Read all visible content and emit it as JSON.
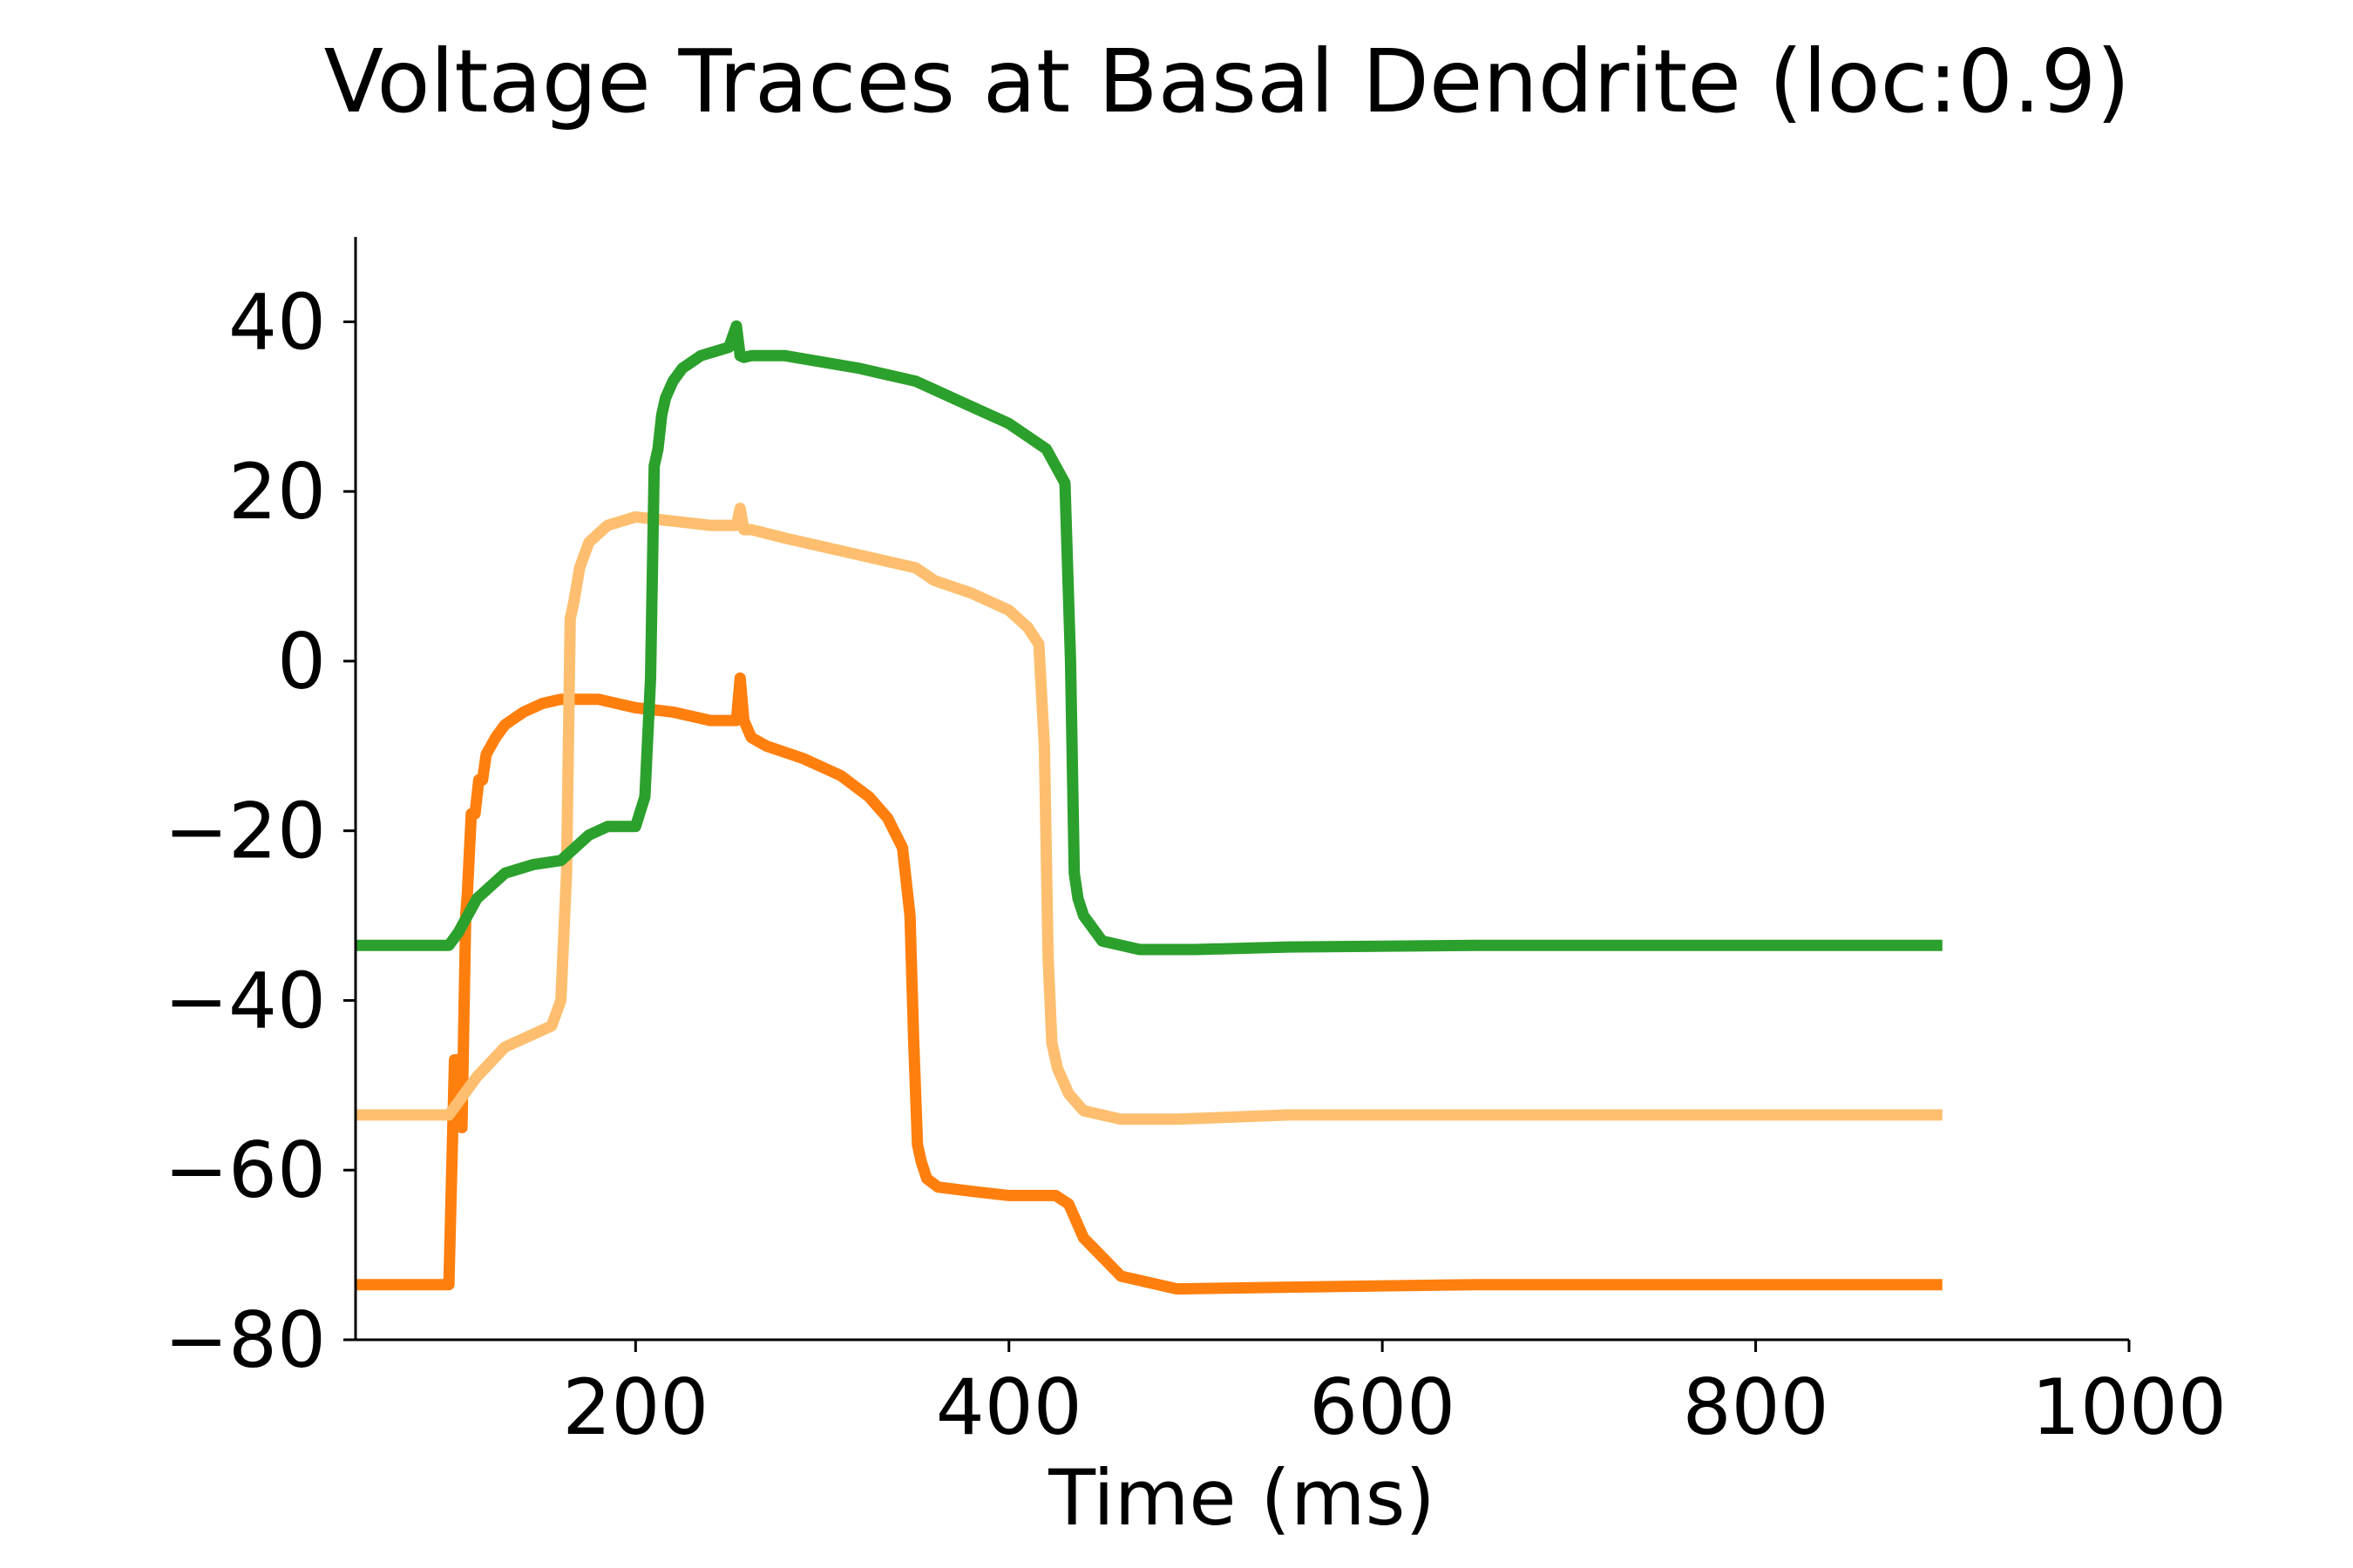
{
  "chart_data": {
    "type": "line",
    "title": "Voltage Traces at Basal Dendrite (loc:0.9)",
    "xlabel": "Time (ms)",
    "ylabel": "",
    "xlim": [
      50,
      1000
    ],
    "ylim": [
      -80,
      50
    ],
    "xticks": [
      200,
      400,
      600,
      800,
      1000
    ],
    "xtick_labels": [
      "200",
      "400",
      "600",
      "800",
      "1000"
    ],
    "yticks": [
      40,
      20,
      0,
      -20,
      -40,
      -60,
      -80
    ],
    "ytick_labels": [
      "40",
      "20",
      "0",
      "−20",
      "−40",
      "−60",
      "−80"
    ],
    "grid": false,
    "series": [
      {
        "color": "#ff7f0e",
        "x": [
          50,
          100,
          103,
          105,
          107,
          109,
          110,
          112,
          114,
          116,
          118,
          120,
          125,
          130,
          140,
          150,
          160,
          170,
          180,
          200,
          220,
          240,
          254,
          256,
          258,
          260,
          262,
          270,
          290,
          310,
          325,
          335,
          343,
          347,
          349,
          351,
          353,
          356,
          362,
          380,
          400,
          425,
          432,
          440,
          460,
          490,
          550,
          650,
          900
        ],
        "y": [
          -73.5,
          -73.5,
          -47,
          -47,
          -55,
          -30,
          -27,
          -18,
          -18,
          -14,
          -14,
          -11,
          -9,
          -7.5,
          -6,
          -5,
          -4.5,
          -4.5,
          -4.5,
          -5.5,
          -6,
          -7,
          -7,
          -2,
          -7,
          -8,
          -9,
          -10,
          -11.5,
          -13.5,
          -16,
          -18.5,
          -22,
          -30,
          -45,
          -57,
          -59,
          -61,
          -62,
          -62.5,
          -63,
          -63,
          -64,
          -68,
          -72.5,
          -74,
          -73.8,
          -73.5,
          -73.5
        ]
      },
      {
        "color": "#fdbf6f",
        "x": [
          50,
          100,
          105,
          115,
          130,
          145,
          155,
          160,
          163,
          165,
          167,
          170,
          175,
          185,
          200,
          220,
          240,
          254,
          256,
          258,
          262,
          280,
          320,
          350,
          360,
          380,
          400,
          410,
          416,
          419,
          421,
          423,
          426,
          432,
          440,
          460,
          490,
          550,
          650,
          900
        ],
        "y": [
          -53.5,
          -53.5,
          -52,
          -49,
          -45.5,
          -44,
          -43,
          -40,
          -25,
          5,
          7,
          11,
          14,
          16,
          17,
          16.5,
          16,
          16,
          18,
          15.5,
          15.5,
          14.5,
          12.5,
          11,
          9.5,
          8,
          6,
          4,
          2,
          -10,
          -35,
          -45,
          -48,
          -51,
          -53,
          -54,
          -54,
          -53.5,
          -53.5,
          -53.5
        ]
      },
      {
        "color": "#2ca02c",
        "x": [
          50,
          100,
          105,
          115,
          130,
          145,
          160,
          175,
          185,
          200,
          205,
          208,
          210,
          212,
          214,
          216,
          220,
          225,
          235,
          250,
          254,
          256,
          258,
          262,
          270,
          280,
          320,
          350,
          360,
          380,
          400,
          420,
          430,
          433,
          435,
          437,
          440,
          450,
          470,
          500,
          550,
          650,
          900
        ],
        "y": [
          -33.5,
          -33.5,
          -32,
          -28,
          -25,
          -24,
          -23.5,
          -20.5,
          -19.5,
          -19.5,
          -16,
          -2,
          23,
          25,
          29,
          31,
          33,
          34.5,
          36,
          37,
          39.5,
          36,
          35.8,
          36,
          36,
          36,
          34.5,
          33,
          32,
          30,
          28,
          25,
          21,
          0,
          -25,
          -28,
          -30,
          -33,
          -34,
          -34,
          -33.7,
          -33.5,
          -33.5
        ]
      }
    ]
  }
}
